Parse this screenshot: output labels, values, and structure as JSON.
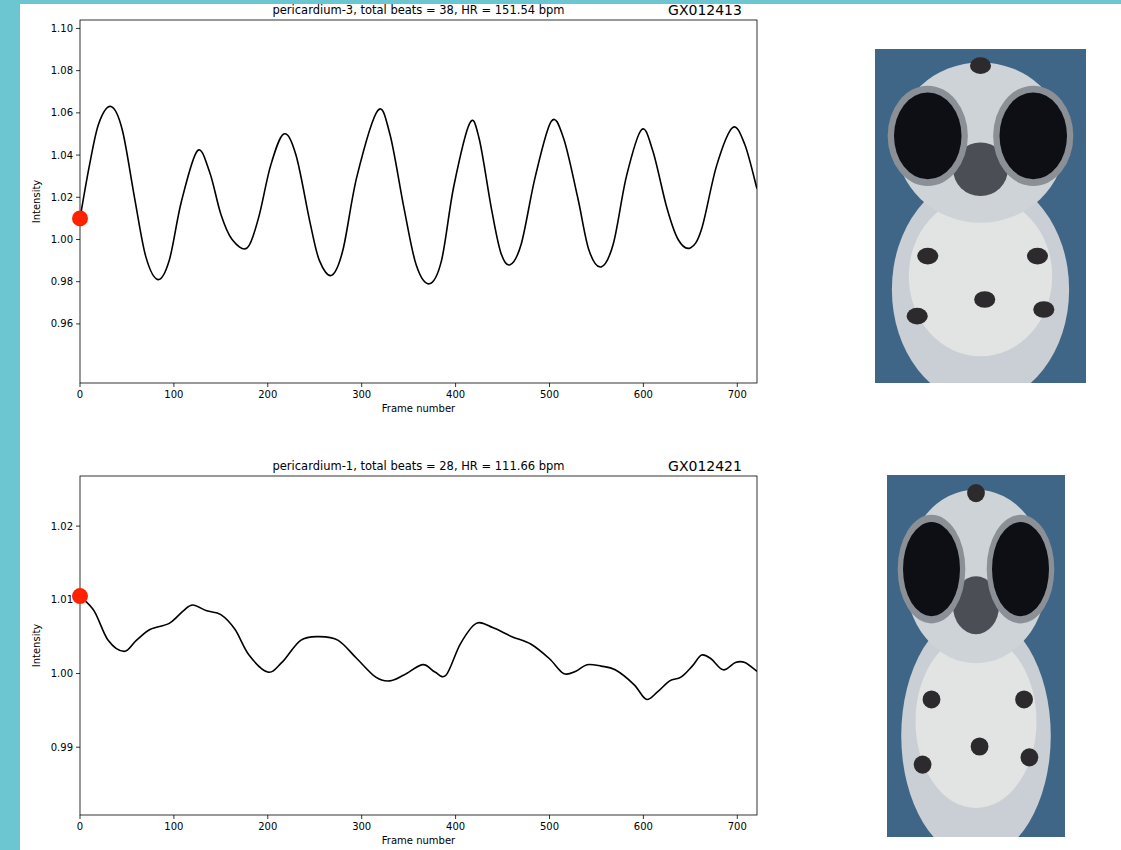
{
  "chart_data": [
    {
      "type": "line",
      "title": "pericardium-3, total beats = 38, HR = 151.54 bpm",
      "subtitle": "GX012413",
      "x_label": "Frame number",
      "y_label": "Intensity",
      "color": "#000000",
      "x": [
        0,
        10,
        20,
        33,
        45,
        58,
        70,
        83,
        95,
        108,
        125,
        138,
        150,
        162,
        178,
        190,
        203,
        217,
        230,
        245,
        255,
        268,
        280,
        295,
        317,
        330,
        345,
        358,
        372,
        385,
        398,
        415,
        425,
        438,
        448,
        458,
        470,
        485,
        502,
        515,
        530,
        542,
        555,
        568,
        582,
        598,
        610,
        625,
        637,
        650,
        662,
        678,
        695,
        708,
        721
      ],
      "values": [
        1.01,
        1.035,
        1.055,
        1.063,
        1.052,
        1.02,
        0.992,
        0.981,
        0.99,
        1.018,
        1.042,
        1.032,
        1.012,
        1.0,
        0.996,
        1.01,
        1.035,
        1.05,
        1.04,
        1.008,
        0.99,
        0.983,
        0.995,
        1.03,
        1.061,
        1.05,
        1.015,
        0.988,
        0.979,
        0.99,
        1.025,
        1.055,
        1.048,
        1.015,
        0.994,
        0.988,
        0.998,
        1.03,
        1.056,
        1.048,
        1.02,
        0.995,
        0.987,
        0.998,
        1.03,
        1.052,
        1.042,
        1.015,
        1.0,
        0.996,
        1.005,
        1.035,
        1.053,
        1.045,
        1.024
      ],
      "highlight": {
        "x": 0,
        "y": 1.01,
        "color": "#ff2200"
      },
      "xlim": [
        0,
        721
      ],
      "xticks": [
        0,
        100,
        200,
        300,
        400,
        500,
        600,
        700
      ],
      "ylim": [
        0.932,
        1.104
      ],
      "yticks": [
        {
          "value": 0.96,
          "label": "0.96"
        },
        {
          "value": 0.98,
          "label": "0.98"
        },
        {
          "value": 1.0,
          "label": "1.00"
        },
        {
          "value": 1.02,
          "label": "1.02"
        },
        {
          "value": 1.04,
          "label": "1.04"
        },
        {
          "value": 1.06,
          "label": "1.06"
        },
        {
          "value": 1.08,
          "label": "1.08"
        },
        {
          "value": 1.1,
          "label": "1.10"
        }
      ],
      "grid": false
    },
    {
      "type": "line",
      "title": "pericardium-1, total beats = 28, HR = 111.66 bpm",
      "subtitle": "GX012421",
      "x_label": "Frame number",
      "y_label": "Intensity",
      "color": "#000000",
      "x": [
        0,
        15,
        30,
        47,
        60,
        75,
        95,
        110,
        120,
        135,
        150,
        165,
        180,
        200,
        215,
        235,
        255,
        275,
        295,
        315,
        330,
        345,
        365,
        378,
        390,
        405,
        422,
        440,
        460,
        480,
        500,
        515,
        528,
        540,
        555,
        570,
        590,
        603,
        615,
        628,
        640,
        652,
        662,
        672,
        685,
        698,
        708,
        721
      ],
      "values": [
        1.0105,
        1.0085,
        1.0045,
        1.003,
        1.0045,
        1.006,
        1.0068,
        1.0085,
        1.0093,
        1.0085,
        1.008,
        1.006,
        1.0025,
        1.0002,
        1.0015,
        1.0045,
        1.005,
        1.0045,
        1.002,
        0.9995,
        0.999,
        0.9998,
        1.0012,
        1.0002,
        0.9998,
        1.004,
        1.0068,
        1.0062,
        1.005,
        1.004,
        1.002,
        1.0,
        1.0003,
        1.0012,
        1.001,
        1.0005,
        0.9985,
        0.9965,
        0.9975,
        0.999,
        0.9995,
        1.001,
        1.0025,
        1.002,
        1.0005,
        1.0015,
        1.0015,
        1.0003
      ],
      "highlight": {
        "x": 0,
        "y": 1.0105,
        "color": "#ff2200"
      },
      "xlim": [
        0,
        721
      ],
      "xticks": [
        0,
        100,
        200,
        300,
        400,
        500,
        600,
        700
      ],
      "ylim": [
        0.9808,
        1.0268
      ],
      "yticks": [
        {
          "value": 0.99,
          "label": "0.99"
        },
        {
          "value": 1.0,
          "label": "1.00"
        },
        {
          "value": 1.01,
          "label": "1.01"
        },
        {
          "value": 1.02,
          "label": "1.02"
        }
      ],
      "grid": false
    }
  ]
}
